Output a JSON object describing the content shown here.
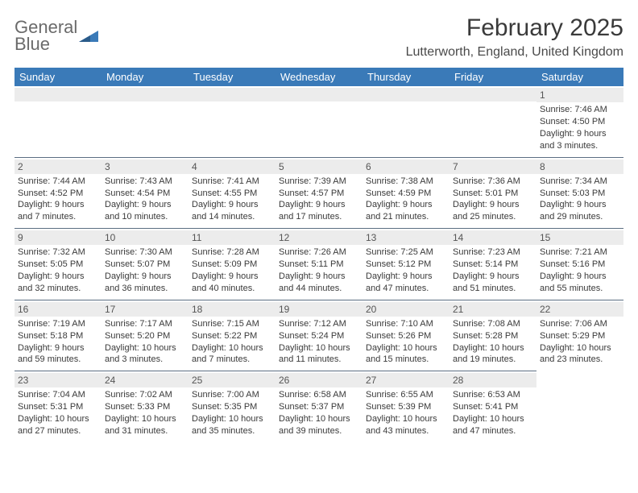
{
  "logo": {
    "text_gray": "General",
    "text_blue": "Blue",
    "shape_color": "#3a7ab8"
  },
  "header": {
    "month_title": "February 2025",
    "location": "Lutterworth, England, United Kingdom"
  },
  "colors": {
    "header_band": "#3a7ab8",
    "header_text": "#ffffff",
    "daynum_band": "#ececec",
    "cell_border": "#5b6e82",
    "body_text": "#3a3a3a"
  },
  "weekdays": [
    "Sunday",
    "Monday",
    "Tuesday",
    "Wednesday",
    "Thursday",
    "Friday",
    "Saturday"
  ],
  "days": {
    "1": {
      "sunrise": "7:46 AM",
      "sunset": "4:50 PM",
      "daylight": "9 hours and 3 minutes."
    },
    "2": {
      "sunrise": "7:44 AM",
      "sunset": "4:52 PM",
      "daylight": "9 hours and 7 minutes."
    },
    "3": {
      "sunrise": "7:43 AM",
      "sunset": "4:54 PM",
      "daylight": "9 hours and 10 minutes."
    },
    "4": {
      "sunrise": "7:41 AM",
      "sunset": "4:55 PM",
      "daylight": "9 hours and 14 minutes."
    },
    "5": {
      "sunrise": "7:39 AM",
      "sunset": "4:57 PM",
      "daylight": "9 hours and 17 minutes."
    },
    "6": {
      "sunrise": "7:38 AM",
      "sunset": "4:59 PM",
      "daylight": "9 hours and 21 minutes."
    },
    "7": {
      "sunrise": "7:36 AM",
      "sunset": "5:01 PM",
      "daylight": "9 hours and 25 minutes."
    },
    "8": {
      "sunrise": "7:34 AM",
      "sunset": "5:03 PM",
      "daylight": "9 hours and 29 minutes."
    },
    "9": {
      "sunrise": "7:32 AM",
      "sunset": "5:05 PM",
      "daylight": "9 hours and 32 minutes."
    },
    "10": {
      "sunrise": "7:30 AM",
      "sunset": "5:07 PM",
      "daylight": "9 hours and 36 minutes."
    },
    "11": {
      "sunrise": "7:28 AM",
      "sunset": "5:09 PM",
      "daylight": "9 hours and 40 minutes."
    },
    "12": {
      "sunrise": "7:26 AM",
      "sunset": "5:11 PM",
      "daylight": "9 hours and 44 minutes."
    },
    "13": {
      "sunrise": "7:25 AM",
      "sunset": "5:12 PM",
      "daylight": "9 hours and 47 minutes."
    },
    "14": {
      "sunrise": "7:23 AM",
      "sunset": "5:14 PM",
      "daylight": "9 hours and 51 minutes."
    },
    "15": {
      "sunrise": "7:21 AM",
      "sunset": "5:16 PM",
      "daylight": "9 hours and 55 minutes."
    },
    "16": {
      "sunrise": "7:19 AM",
      "sunset": "5:18 PM",
      "daylight": "9 hours and 59 minutes."
    },
    "17": {
      "sunrise": "7:17 AM",
      "sunset": "5:20 PM",
      "daylight": "10 hours and 3 minutes."
    },
    "18": {
      "sunrise": "7:15 AM",
      "sunset": "5:22 PM",
      "daylight": "10 hours and 7 minutes."
    },
    "19": {
      "sunrise": "7:12 AM",
      "sunset": "5:24 PM",
      "daylight": "10 hours and 11 minutes."
    },
    "20": {
      "sunrise": "7:10 AM",
      "sunset": "5:26 PM",
      "daylight": "10 hours and 15 minutes."
    },
    "21": {
      "sunrise": "7:08 AM",
      "sunset": "5:28 PM",
      "daylight": "10 hours and 19 minutes."
    },
    "22": {
      "sunrise": "7:06 AM",
      "sunset": "5:29 PM",
      "daylight": "10 hours and 23 minutes."
    },
    "23": {
      "sunrise": "7:04 AM",
      "sunset": "5:31 PM",
      "daylight": "10 hours and 27 minutes."
    },
    "24": {
      "sunrise": "7:02 AM",
      "sunset": "5:33 PM",
      "daylight": "10 hours and 31 minutes."
    },
    "25": {
      "sunrise": "7:00 AM",
      "sunset": "5:35 PM",
      "daylight": "10 hours and 35 minutes."
    },
    "26": {
      "sunrise": "6:58 AM",
      "sunset": "5:37 PM",
      "daylight": "10 hours and 39 minutes."
    },
    "27": {
      "sunrise": "6:55 AM",
      "sunset": "5:39 PM",
      "daylight": "10 hours and 43 minutes."
    },
    "28": {
      "sunrise": "6:53 AM",
      "sunset": "5:41 PM",
      "daylight": "10 hours and 47 minutes."
    }
  },
  "labels": {
    "sunrise_prefix": "Sunrise: ",
    "sunset_prefix": "Sunset: ",
    "daylight_prefix": "Daylight: "
  },
  "grid": {
    "start_weekday_index": 6,
    "num_days": 28,
    "rows": 5,
    "cols": 7
  }
}
